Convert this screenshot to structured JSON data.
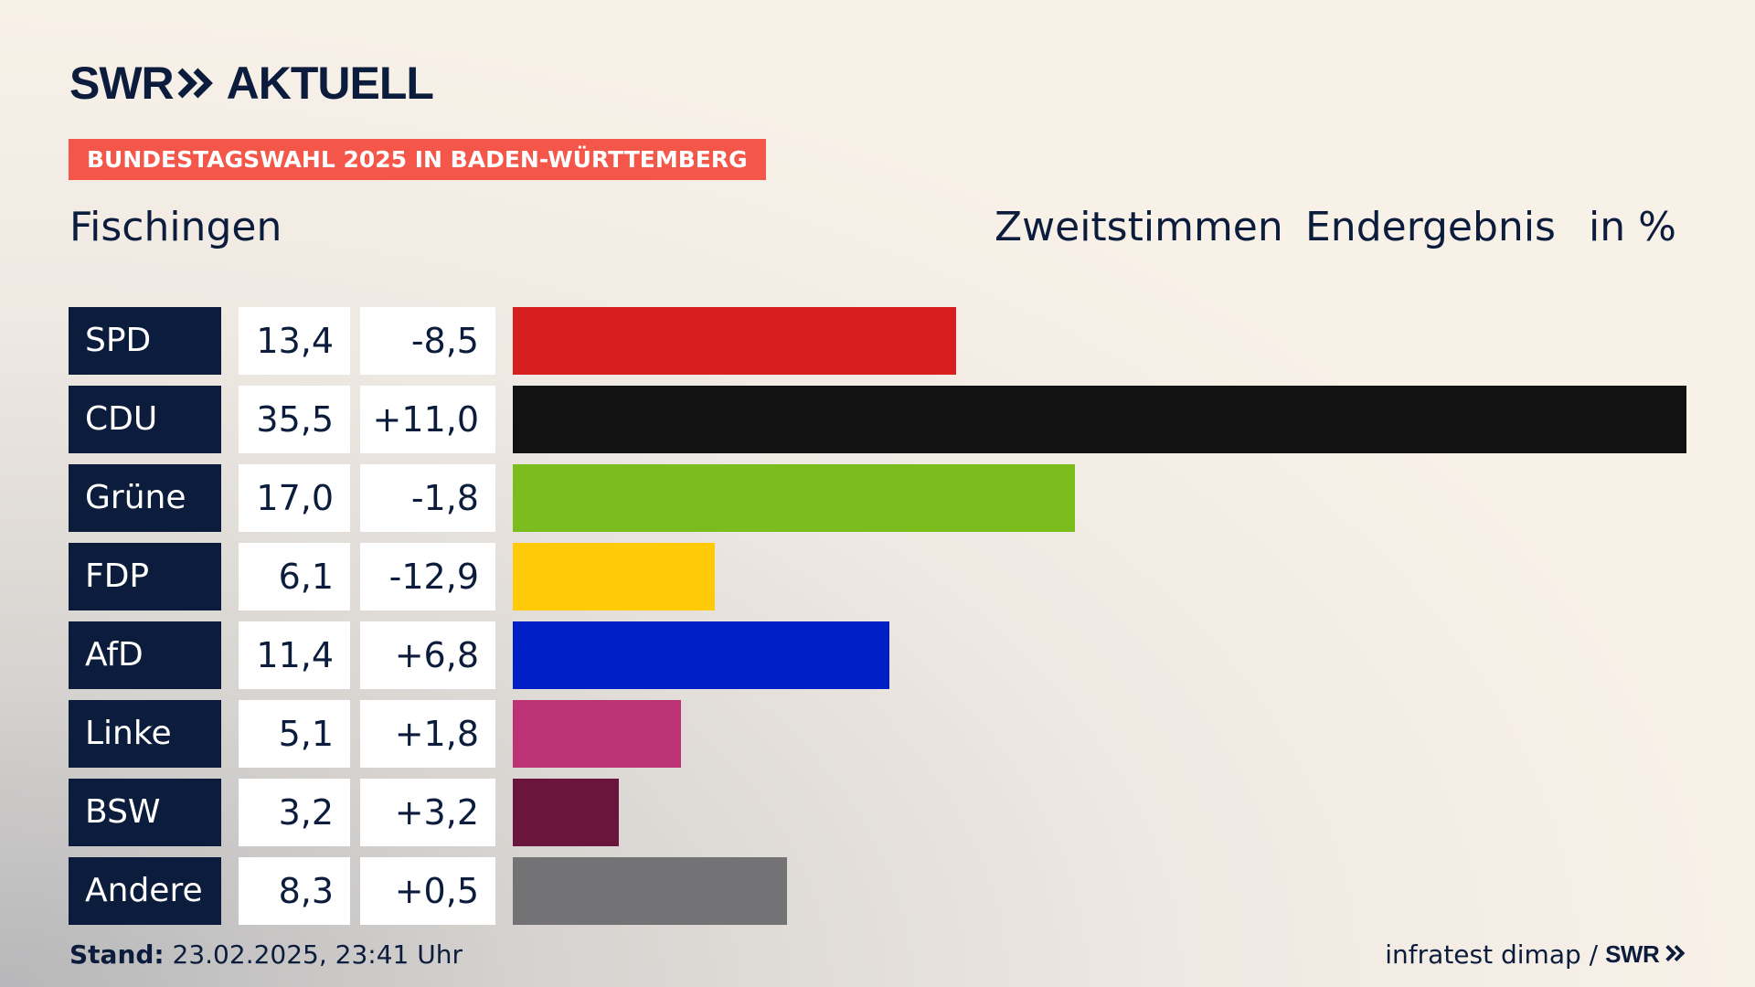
{
  "brand": {
    "swr": "SWR",
    "aktuell": "AKTUELL"
  },
  "banner": "BUNDESTAGSWAHL 2025 IN BADEN-WÜRTTEMBERG",
  "place": "Fischingen",
  "header": {
    "vote_type": "Zweitstimmen",
    "result": "Endergebnis",
    "unit": "in %"
  },
  "colors": {
    "navy": "#0c1c3c",
    "banner": "#f4574a"
  },
  "chart_data": {
    "type": "bar",
    "orientation": "horizontal",
    "title": "Fischingen",
    "subtitle": "Zweitstimmen Endergebnis in %",
    "categories": [
      "SPD",
      "CDU",
      "Grüne",
      "FDP",
      "AfD",
      "Linke",
      "BSW",
      "Andere"
    ],
    "values": [
      13.4,
      35.5,
      17.0,
      6.1,
      11.4,
      5.1,
      3.2,
      8.3
    ],
    "value_labels": [
      "13,4",
      "35,5",
      "17,0",
      "6,1",
      "11,4",
      "5,1",
      "3,2",
      "8,3"
    ],
    "changes": [
      -8.5,
      11.0,
      -1.8,
      -12.9,
      6.8,
      1.8,
      3.2,
      0.5
    ],
    "change_labels": [
      "-8,5",
      "+11,0",
      "-1,8",
      "-12,9",
      "+6,8",
      "+1,8",
      "+3,2",
      "+0,5"
    ],
    "colors": [
      "#d71f1f",
      "#121212",
      "#7bbd1d",
      "#ffcb08",
      "#001fc6",
      "#bc3275",
      "#6a163c",
      "#737375"
    ],
    "xlim": [
      0,
      35.5
    ],
    "grid": false,
    "legend": "none"
  },
  "footer": {
    "stand_label": "Stand:",
    "stand_value": "23.02.2025, 23:41 Uhr",
    "source": "infratest dimap /",
    "source_brand": "SWR"
  }
}
